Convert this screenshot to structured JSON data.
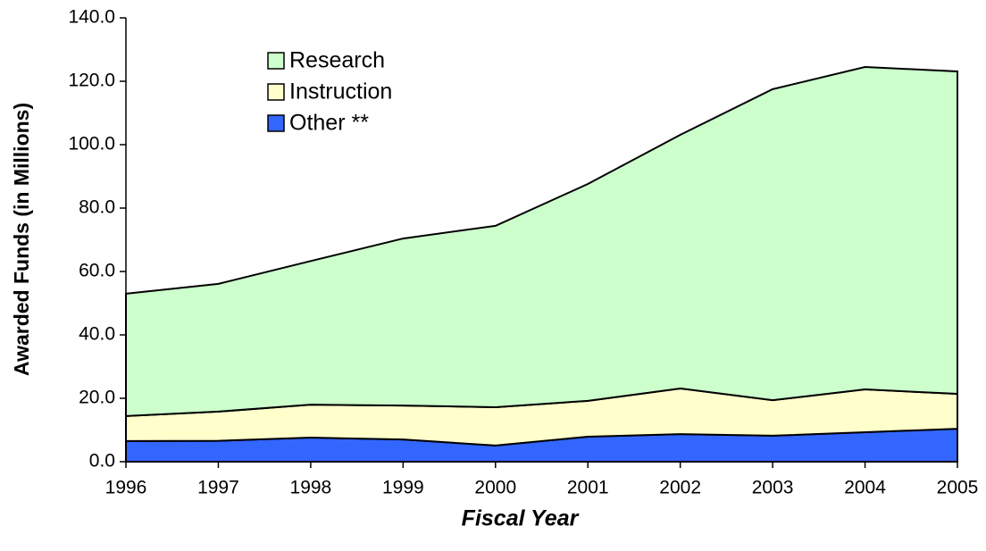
{
  "chart_data": {
    "type": "stacked_area",
    "x_label": "Fiscal Year",
    "y_label": "Awarded Funds (in Millions)",
    "categories": [
      "1996",
      "1997",
      "1998",
      "1999",
      "2000",
      "2001",
      "2002",
      "2003",
      "2004",
      "2005"
    ],
    "series": [
      {
        "name": "Other **",
        "color": "#3366ff",
        "values": [
          6.5,
          6.6,
          7.6,
          7.0,
          5.1,
          7.9,
          8.7,
          8.2,
          9.3,
          10.4
        ]
      },
      {
        "name": "Instruction",
        "color": "#ffffcc",
        "values": [
          7.9,
          9.2,
          10.4,
          10.7,
          12.1,
          11.3,
          14.4,
          11.2,
          13.5,
          11.0
        ]
      },
      {
        "name": "Research",
        "color": "#ccffcc",
        "values": [
          38.6,
          40.3,
          45.3,
          52.7,
          57.2,
          68.4,
          80.0,
          98.1,
          101.7,
          101.7
        ]
      }
    ],
    "ylim": [
      0,
      140
    ],
    "yticks": [
      {
        "value": 0,
        "label": "0.0"
      },
      {
        "value": 20,
        "label": "20.0"
      },
      {
        "value": 40,
        "label": "40.0"
      },
      {
        "value": 60,
        "label": "60.0"
      },
      {
        "value": 80,
        "label": "80.0"
      },
      {
        "value": 100,
        "label": "100.0"
      },
      {
        "value": 120,
        "label": "120.0"
      },
      {
        "value": 140,
        "label": "140.0"
      }
    ],
    "legend": "top-left"
  }
}
